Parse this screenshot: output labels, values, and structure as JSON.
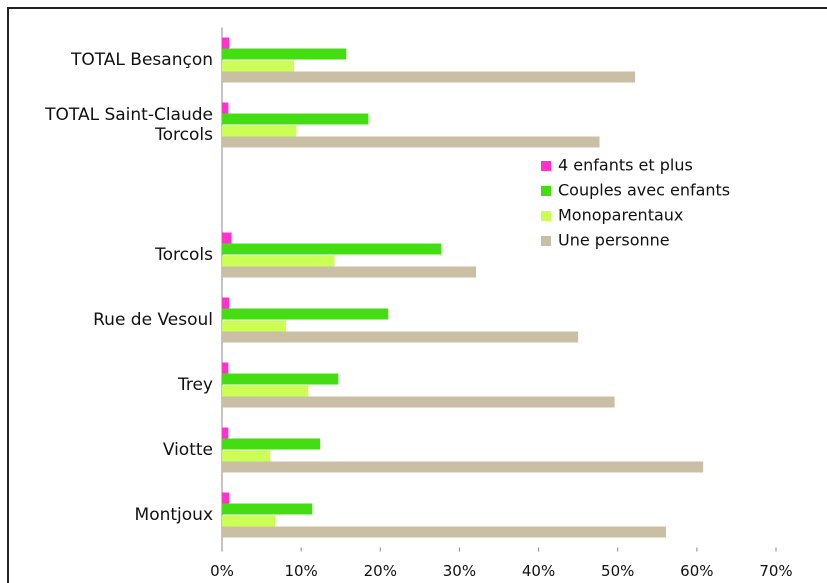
{
  "chart_data": {
    "type": "hbar",
    "categories": [
      "TOTAL Besançon",
      "TOTAL Saint-Claude Torcols",
      null,
      "Torcols",
      "Rue de Vesoul",
      "Trey",
      "Viotte",
      "Montjoux"
    ],
    "series": [
      {
        "name": "4 enfants et plus",
        "color": "#ff33cc",
        "values": [
          0.9,
          0.8,
          null,
          1.2,
          0.9,
          0.8,
          0.8,
          0.9
        ]
      },
      {
        "name": "Couples avec enfants",
        "color": "#44dd11",
        "values": [
          15.7,
          18.5,
          null,
          27.7,
          21.0,
          14.7,
          12.4,
          11.4
        ]
      },
      {
        "name": "Monoparentaux",
        "color": "#ccff55",
        "values": [
          9.1,
          9.4,
          null,
          14.2,
          8.1,
          10.9,
          6.1,
          6.7
        ]
      },
      {
        "name": "Une personne",
        "color": "#c8bfa5",
        "values": [
          52.2,
          47.7,
          null,
          32.1,
          45.0,
          49.6,
          60.8,
          56.1
        ]
      }
    ],
    "xlim": [
      0,
      70
    ],
    "xticks": [
      {
        "value": 0,
        "label": "0%"
      },
      {
        "value": 10,
        "label": "10%"
      },
      {
        "value": 20,
        "label": "20%"
      },
      {
        "value": 30,
        "label": "30%"
      },
      {
        "value": 40,
        "label": "40%"
      },
      {
        "value": 50,
        "label": "50%"
      },
      {
        "value": 60,
        "label": "60%"
      },
      {
        "value": 70,
        "label": "70%"
      }
    ],
    "legend": "right"
  }
}
